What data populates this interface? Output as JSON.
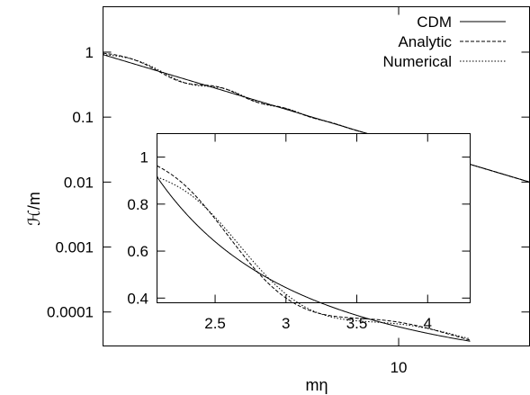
{
  "chart_data": [
    {
      "id": "main",
      "type": "line",
      "xlabel": "mη",
      "ylabel": "ℋ/m",
      "xscale": "log",
      "yscale": "log",
      "xlim": [
        2.09,
        20.0
      ],
      "ylim": [
        3e-05,
        5.0
      ],
      "xticks": [
        10
      ],
      "x_tick_labels": [
        "10"
      ],
      "yticks": [
        0.0001,
        0.001,
        0.01,
        0.1,
        1
      ],
      "y_tick_labels": [
        "0.0001",
        "0.001",
        "0.01",
        "0.1",
        "1"
      ],
      "legend_position": "top-right",
      "series": [
        {
          "name": "CDM",
          "dash": "solid",
          "formula": "cdm"
        },
        {
          "name": "Analytic",
          "dash": "dashed",
          "formula": "analytic"
        },
        {
          "name": "Numerical",
          "dash": "dotted",
          "formula": "numerical"
        }
      ]
    },
    {
      "id": "inset",
      "type": "line",
      "xscale": "linear",
      "yscale": "linear",
      "xlim": [
        2.09,
        4.3
      ],
      "ylim": [
        0.38,
        1.1
      ],
      "xticks": [
        2.5,
        3,
        3.5,
        4
      ],
      "x_tick_labels": [
        "2.5",
        "3",
        "3.5",
        "4"
      ],
      "yticks": [
        0.4,
        0.6,
        0.8,
        1
      ],
      "y_tick_labels": [
        "0.4",
        "0.6",
        "0.8",
        "1"
      ],
      "series": [
        {
          "name": "CDM",
          "dash": "solid",
          "formula": "cdm"
        },
        {
          "name": "Analytic",
          "dash": "dashed",
          "formula": "analytic"
        },
        {
          "name": "Numerical",
          "dash": "dotted",
          "formula": "numerical"
        }
      ]
    }
  ]
}
